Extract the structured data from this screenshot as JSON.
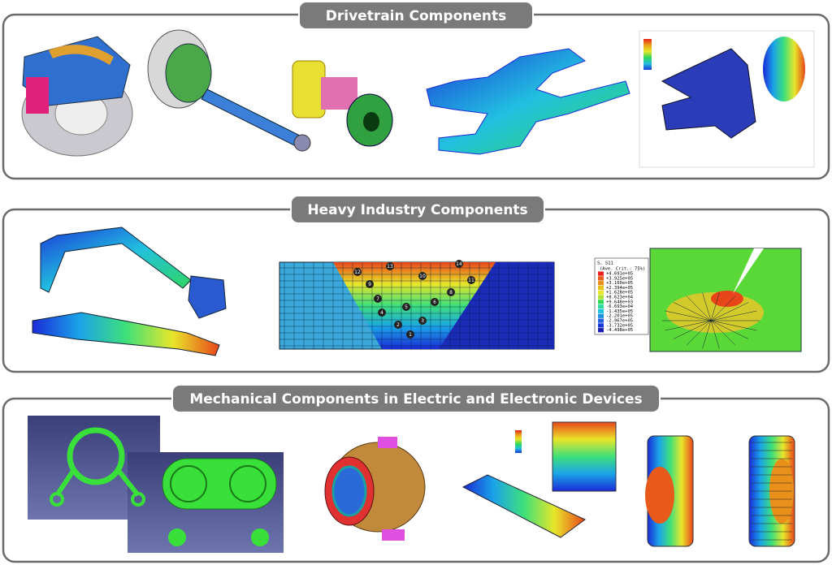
{
  "sections": [
    {
      "title": "Drivetrain Components"
    },
    {
      "title": "Heavy Industry Components",
      "contour_legend": {
        "title": "S, S11",
        "subtitle": "(Ave. Crit.: 75%)",
        "entries": [
          "+4.691e+05",
          "+3.925e+05",
          "+3.160e+05",
          "+2.394e+05",
          "+1.628e+05",
          "+8.623e+04",
          "+9.648e+03",
          "-6.693e+04",
          "-1.435e+05",
          "-2.201e+05",
          "-2.967e+05",
          "-3.732e+05",
          "-4.498e+05"
        ]
      },
      "weld_passes": [
        "1",
        "2",
        "3",
        "4",
        "5",
        "6",
        "7",
        "8",
        "9",
        "10",
        "11",
        "12",
        "13",
        "14"
      ]
    },
    {
      "title": "Mechanical Components in Electric and Electronic Devices"
    }
  ]
}
